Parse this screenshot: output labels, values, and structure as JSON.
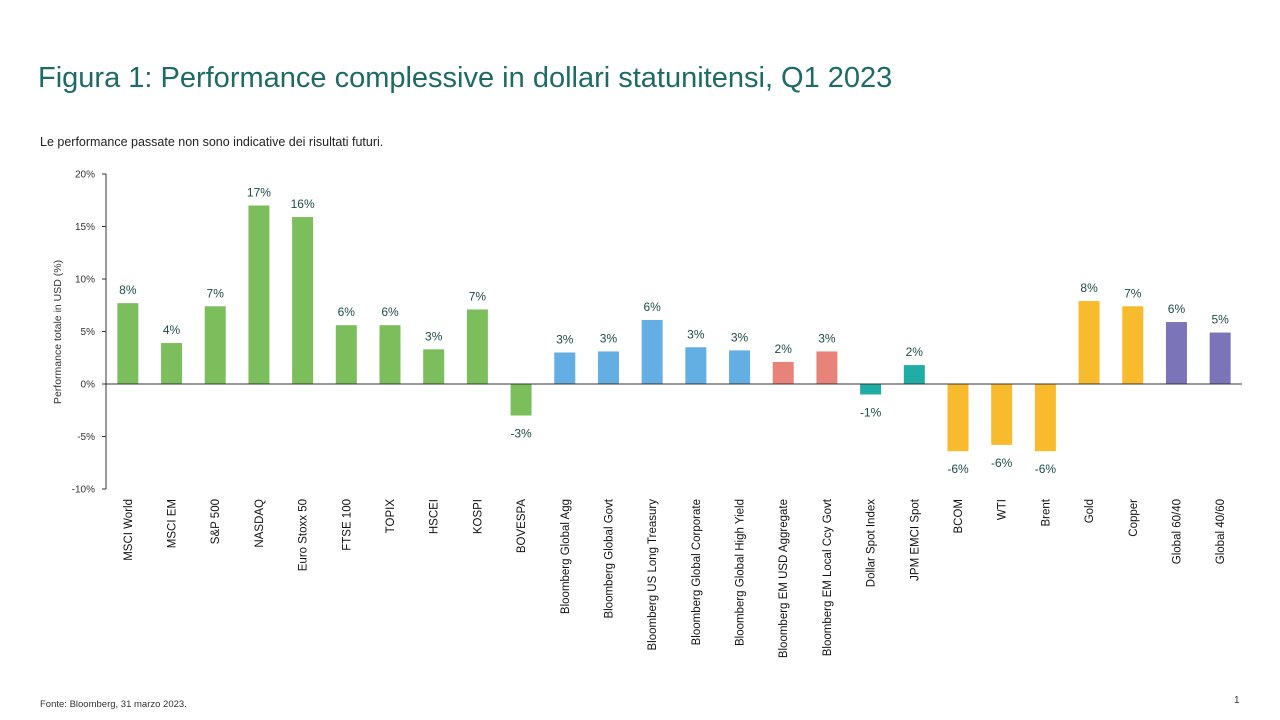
{
  "title": "Figura 1: Performance complessive in dollari statunitensi, Q1 2023",
  "subtitle": "Le performance passate non sono indicative dei risultati futuri.",
  "source": "Fonte: Bloomberg, 31 marzo 2023.",
  "page_number": "1",
  "colors": {
    "title": "#1e6b66",
    "equity": "#7dbe5c",
    "bonds": "#63aee3",
    "em_bonds": "#e8837a",
    "fx": "#20ada6",
    "commodities": "#f8bb2d",
    "multi_asset": "#7b74b8",
    "axis": "#333333"
  },
  "chart_data": {
    "type": "bar",
    "title": "",
    "xlabel": "",
    "ylabel": "Performance totale in USD (%)",
    "ylim": [
      -10,
      20
    ],
    "yticks": [
      -10,
      -5,
      0,
      5,
      10,
      15,
      20
    ],
    "ytick_labels": [
      "-10%",
      "-5%",
      "0%",
      "5%",
      "10%",
      "15%",
      "20%"
    ],
    "grid": false,
    "categories": [
      "MSCI World",
      "MSCI EM",
      "S&P 500",
      "NASDAQ",
      "Euro Stoxx 50",
      "FTSE 100",
      "TOPIX",
      "HSCEI",
      "KOSPI",
      "BOVESPA",
      "Bloomberg Global Agg",
      "Bloomberg Global Govt",
      "Bloomberg US Long Treasury",
      "Bloomberg Global Corporate",
      "Bloomberg Global High Yield",
      "Bloomberg EM USD Aggregate",
      "Bloomberg EM Local Ccy Govt",
      "Dollar Spot Index",
      "JPM EMCI Spot",
      "BCOM",
      "WTI",
      "Brent",
      "Gold",
      "Copper",
      "Global 60/40",
      "Global 40/60"
    ],
    "values": [
      7.7,
      3.9,
      7.4,
      17.0,
      15.9,
      5.6,
      5.6,
      3.3,
      7.1,
      -3.0,
      3.0,
      3.1,
      6.1,
      3.5,
      3.2,
      2.1,
      3.1,
      -1.0,
      1.8,
      -6.4,
      -5.8,
      -6.4,
      7.9,
      7.4,
      5.9,
      4.9
    ],
    "data_labels": [
      "8%",
      "4%",
      "7%",
      "17%",
      "16%",
      "6%",
      "6%",
      "3%",
      "7%",
      "-3%",
      "3%",
      "3%",
      "6%",
      "3%",
      "3%",
      "2%",
      "3%",
      "-1%",
      "2%",
      "-6%",
      "-6%",
      "-6%",
      "8%",
      "7%",
      "6%",
      "5%"
    ],
    "groups": [
      "equity",
      "equity",
      "equity",
      "equity",
      "equity",
      "equity",
      "equity",
      "equity",
      "equity",
      "equity",
      "bonds",
      "bonds",
      "bonds",
      "bonds",
      "bonds",
      "em_bonds",
      "em_bonds",
      "fx",
      "fx",
      "commodities",
      "commodities",
      "commodities",
      "commodities",
      "commodities",
      "multi_asset",
      "multi_asset"
    ]
  }
}
